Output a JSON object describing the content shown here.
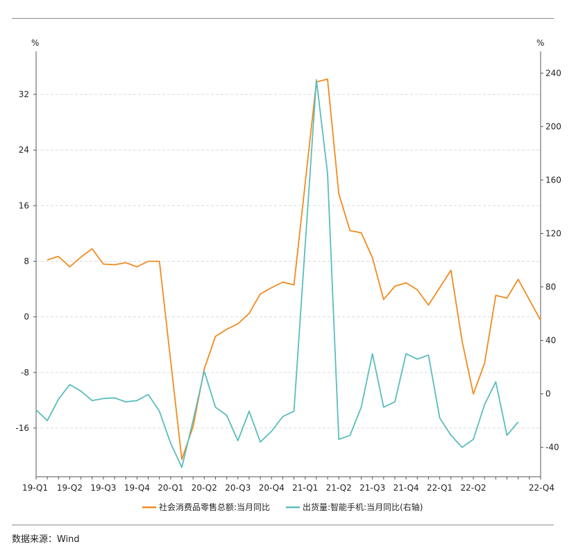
{
  "source_text": "数据来源：Wind",
  "chart_data": {
    "type": "line",
    "title": "",
    "left_axis": {
      "unit": "%",
      "ylim": [
        -23,
        37
      ],
      "ticks": [
        -16,
        -8,
        0,
        8,
        16,
        24,
        32
      ]
    },
    "right_axis": {
      "unit": "%",
      "ylim": [
        -62,
        250
      ],
      "ticks": [
        -40,
        0,
        40,
        80,
        120,
        160,
        200,
        240
      ]
    },
    "x_labels": [
      {
        "label": "19-Q1",
        "x": 1
      },
      {
        "label": "19-Q2",
        "x": 4
      },
      {
        "label": "19-Q3",
        "x": 7
      },
      {
        "label": "19-Q4",
        "x": 10
      },
      {
        "label": "20-Q1",
        "x": 13
      },
      {
        "label": "20-Q2",
        "x": 16
      },
      {
        "label": "20-Q3",
        "x": 19
      },
      {
        "label": "20-Q4",
        "x": 22
      },
      {
        "label": "21-Q1",
        "x": 25
      },
      {
        "label": "21-Q2",
        "x": 28
      },
      {
        "label": "21-Q3",
        "x": 31
      },
      {
        "label": "21-Q4",
        "x": 34
      },
      {
        "label": "22-Q1",
        "x": 37
      },
      {
        "label": "22-Q2",
        "x": 40
      },
      {
        "label": "22-Q4",
        "x": 46
      }
    ],
    "x_range": [
      1,
      46
    ],
    "grid": true,
    "legend_position": "bottom",
    "series": [
      {
        "name": "社会消费品零售总额:当月同比",
        "axis": "left",
        "color": "#f28a1e",
        "points": [
          [
            2,
            8.2
          ],
          [
            3,
            8.7
          ],
          [
            4,
            7.2
          ],
          [
            5,
            8.6
          ],
          [
            6,
            9.8
          ],
          [
            7,
            7.6
          ],
          [
            8,
            7.5
          ],
          [
            9,
            7.8
          ],
          [
            10,
            7.2
          ],
          [
            11,
            8.0
          ],
          [
            12,
            8.0
          ],
          [
            14,
            -20.5
          ],
          [
            15,
            -15.8
          ],
          [
            16,
            -7.5
          ],
          [
            17,
            -2.8
          ],
          [
            18,
            -1.8
          ],
          [
            19,
            -1.0
          ],
          [
            20,
            0.5
          ],
          [
            21,
            3.3
          ],
          [
            22,
            4.2
          ],
          [
            23,
            5.0
          ],
          [
            24,
            4.6
          ],
          [
            26,
            33.8
          ],
          [
            27,
            34.2
          ],
          [
            28,
            17.7
          ],
          [
            29,
            12.4
          ],
          [
            30,
            12.1
          ],
          [
            31,
            8.5
          ],
          [
            32,
            2.5
          ],
          [
            33,
            4.4
          ],
          [
            34,
            4.9
          ],
          [
            35,
            3.9
          ],
          [
            36,
            1.7
          ],
          [
            38,
            6.7
          ],
          [
            39,
            -3.5
          ],
          [
            40,
            -11.1
          ],
          [
            41,
            -6.7
          ],
          [
            42,
            3.1
          ],
          [
            43,
            2.7
          ],
          [
            44,
            5.4
          ],
          [
            46,
            -0.5
          ]
        ]
      },
      {
        "name": "出货量:智能手机:当月同比(右轴)",
        "axis": "right",
        "color": "#5bbcbc",
        "points": [
          [
            1,
            -12
          ],
          [
            2,
            -20
          ],
          [
            3,
            -4
          ],
          [
            4,
            7
          ],
          [
            5,
            2
          ],
          [
            6,
            -5
          ],
          [
            7,
            -3.5
          ],
          [
            8,
            -3
          ],
          [
            9,
            -6
          ],
          [
            10,
            -5
          ],
          [
            11,
            -0.5
          ],
          [
            12,
            -13
          ],
          [
            13,
            -37
          ],
          [
            14,
            -55
          ],
          [
            15,
            -20
          ],
          [
            16,
            17
          ],
          [
            17,
            -10
          ],
          [
            18,
            -16
          ],
          [
            19,
            -35
          ],
          [
            20,
            -13
          ],
          [
            21,
            -36
          ],
          [
            22,
            -28
          ],
          [
            23,
            -17
          ],
          [
            24,
            -13
          ],
          [
            26,
            235
          ],
          [
            27,
            165
          ],
          [
            28,
            -34
          ],
          [
            29,
            -31
          ],
          [
            30,
            -10
          ],
          [
            31,
            30
          ],
          [
            32,
            -10
          ],
          [
            33,
            -6
          ],
          [
            34,
            30
          ],
          [
            35,
            26
          ],
          [
            36,
            29
          ],
          [
            37,
            -18
          ],
          [
            38,
            -31
          ],
          [
            39,
            -40
          ],
          [
            40,
            -34
          ],
          [
            41,
            -8
          ],
          [
            42,
            9
          ],
          [
            43,
            -31
          ],
          [
            44,
            -21
          ]
        ]
      }
    ]
  }
}
